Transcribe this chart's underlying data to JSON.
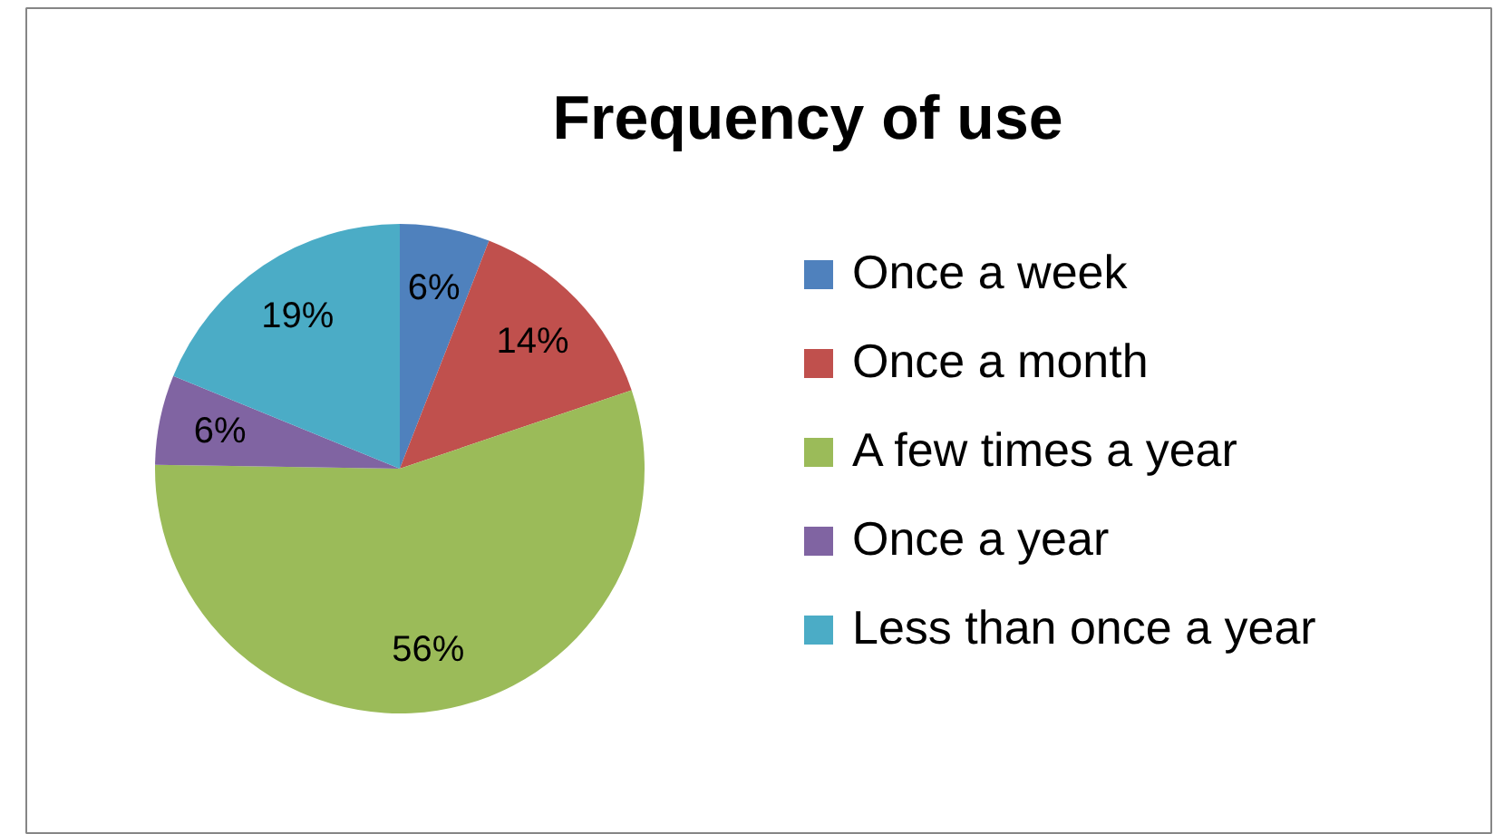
{
  "chart_data": {
    "type": "pie",
    "title": "Frequency of use",
    "categories": [
      "Once a week",
      "Once a month",
      "A few times a year",
      "Once a year",
      "Less than once a year"
    ],
    "values": [
      6,
      14,
      56,
      6,
      19
    ],
    "colors": [
      "#4f81bd",
      "#c0504d",
      "#9bbb59",
      "#8064a2",
      "#4bacc6"
    ],
    "value_labels": [
      "6%",
      "14%",
      "56%",
      "6%",
      "19%"
    ],
    "legend": "right"
  }
}
